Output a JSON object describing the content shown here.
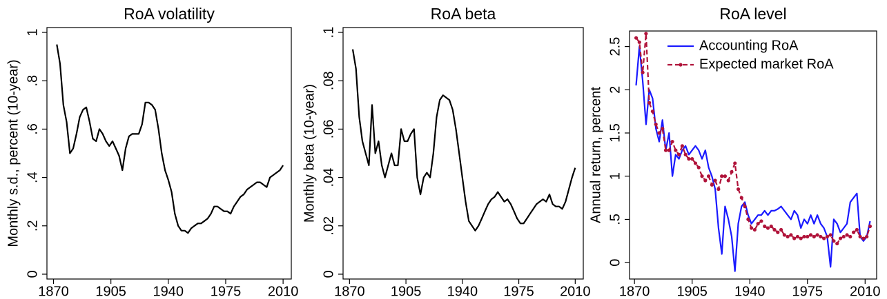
{
  "chart_data": [
    {
      "type": "line",
      "title": "RoA volatility",
      "y_label": "Monthly s.d., percent (10-year)",
      "color": "#000000",
      "x": [
        1872,
        1874,
        1876,
        1878,
        1880,
        1882,
        1884,
        1886,
        1888,
        1890,
        1892,
        1894,
        1896,
        1898,
        1900,
        1902,
        1904,
        1906,
        1908,
        1910,
        1912,
        1914,
        1916,
        1918,
        1920,
        1922,
        1924,
        1926,
        1928,
        1930,
        1932,
        1934,
        1936,
        1938,
        1940,
        1942,
        1944,
        1946,
        1948,
        1950,
        1952,
        1954,
        1956,
        1958,
        1960,
        1962,
        1964,
        1966,
        1968,
        1970,
        1972,
        1974,
        1976,
        1978,
        1980,
        1982,
        1984,
        1986,
        1988,
        1990,
        1992,
        1994,
        1996,
        1998,
        2000,
        2002,
        2004,
        2006,
        2008,
        2010
      ],
      "values": [
        0.95,
        0.87,
        0.7,
        0.63,
        0.5,
        0.52,
        0.58,
        0.65,
        0.68,
        0.69,
        0.63,
        0.56,
        0.55,
        0.6,
        0.58,
        0.55,
        0.53,
        0.55,
        0.52,
        0.49,
        0.43,
        0.52,
        0.57,
        0.58,
        0.58,
        0.58,
        0.62,
        0.71,
        0.71,
        0.7,
        0.68,
        0.6,
        0.5,
        0.43,
        0.39,
        0.34,
        0.25,
        0.2,
        0.18,
        0.18,
        0.17,
        0.19,
        0.2,
        0.21,
        0.21,
        0.22,
        0.23,
        0.25,
        0.28,
        0.28,
        0.27,
        0.26,
        0.26,
        0.25,
        0.28,
        0.3,
        0.32,
        0.33,
        0.35,
        0.36,
        0.37,
        0.38,
        0.38,
        0.37,
        0.36,
        0.4,
        0.41,
        0.42,
        0.43,
        0.45
      ],
      "xlim": [
        1866,
        2015
      ],
      "xticks": [
        1870,
        1905,
        1940,
        1975,
        2010
      ],
      "ylim": [
        -0.02,
        1.02
      ],
      "yticks": [
        0,
        {
          "value": 0.2,
          "label": ".2"
        },
        {
          "value": 0.4,
          "label": ".4"
        },
        {
          "value": 0.6,
          "label": ".6"
        },
        {
          "value": 0.8,
          "label": ".8"
        },
        1
      ]
    },
    {
      "type": "line",
      "title": "RoA beta",
      "y_label": "Monthly beta (10-year)",
      "color": "#000000",
      "x": [
        1872,
        1874,
        1876,
        1878,
        1880,
        1882,
        1884,
        1886,
        1888,
        1890,
        1892,
        1894,
        1896,
        1898,
        1900,
        1902,
        1904,
        1906,
        1908,
        1910,
        1912,
        1914,
        1916,
        1918,
        1920,
        1922,
        1924,
        1926,
        1928,
        1930,
        1932,
        1934,
        1936,
        1938,
        1940,
        1942,
        1944,
        1946,
        1948,
        1950,
        1952,
        1954,
        1956,
        1958,
        1960,
        1962,
        1964,
        1966,
        1968,
        1970,
        1972,
        1974,
        1976,
        1978,
        1980,
        1982,
        1984,
        1986,
        1988,
        1990,
        1992,
        1994,
        1996,
        1998,
        2000,
        2002,
        2004,
        2006,
        2008,
        2010
      ],
      "values": [
        0.093,
        0.085,
        0.065,
        0.055,
        0.05,
        0.045,
        0.07,
        0.05,
        0.055,
        0.045,
        0.04,
        0.045,
        0.05,
        0.045,
        0.045,
        0.06,
        0.055,
        0.055,
        0.058,
        0.06,
        0.04,
        0.033,
        0.04,
        0.042,
        0.04,
        0.05,
        0.065,
        0.072,
        0.074,
        0.073,
        0.072,
        0.068,
        0.06,
        0.05,
        0.04,
        0.03,
        0.022,
        0.02,
        0.018,
        0.02,
        0.023,
        0.026,
        0.029,
        0.031,
        0.032,
        0.034,
        0.032,
        0.03,
        0.031,
        0.029,
        0.026,
        0.023,
        0.021,
        0.021,
        0.023,
        0.025,
        0.027,
        0.029,
        0.03,
        0.031,
        0.03,
        0.033,
        0.029,
        0.028,
        0.028,
        0.027,
        0.03,
        0.035,
        0.04,
        0.044
      ],
      "xlim": [
        1866,
        2015
      ],
      "xticks": [
        1870,
        1905,
        1940,
        1975,
        2010
      ],
      "ylim": [
        -0.002,
        0.102
      ],
      "yticks": [
        0,
        {
          "value": 0.02,
          "label": ".02"
        },
        {
          "value": 0.04,
          "label": ".04"
        },
        {
          "value": 0.06,
          "label": ".06"
        },
        {
          "value": 0.08,
          "label": ".08"
        },
        {
          "value": 0.1,
          "label": ".1"
        }
      ]
    },
    {
      "type": "line",
      "title": "RoA level",
      "y_label": "Annual return, percent",
      "legend": "upper right",
      "x": [
        1871,
        1873,
        1875,
        1877,
        1879,
        1881,
        1883,
        1885,
        1887,
        1889,
        1891,
        1893,
        1895,
        1897,
        1899,
        1901,
        1903,
        1905,
        1907,
        1909,
        1911,
        1913,
        1915,
        1917,
        1919,
        1921,
        1923,
        1925,
        1927,
        1929,
        1931,
        1933,
        1935,
        1937,
        1939,
        1941,
        1943,
        1945,
        1947,
        1949,
        1951,
        1953,
        1955,
        1957,
        1959,
        1961,
        1963,
        1965,
        1967,
        1969,
        1971,
        1973,
        1975,
        1977,
        1979,
        1981,
        1983,
        1985,
        1987,
        1989,
        1991,
        1993,
        1995,
        1997,
        1999,
        2001,
        2003,
        2005,
        2007,
        2009,
        2011,
        2013
      ],
      "series": [
        {
          "name": "Accounting RoA",
          "color": "#1a1aff",
          "dash": false,
          "markers": false,
          "values": [
            2.05,
            2.5,
            2.1,
            1.6,
            2.0,
            1.9,
            1.55,
            1.4,
            1.65,
            1.3,
            1.5,
            1.0,
            1.25,
            1.2,
            1.3,
            1.35,
            1.25,
            1.3,
            1.35,
            1.3,
            1.2,
            1.3,
            1.1,
            1.0,
            0.85,
            0.4,
            0.1,
            0.65,
            0.5,
            0.3,
            -0.1,
            0.45,
            0.65,
            0.7,
            0.55,
            0.45,
            0.5,
            0.55,
            0.55,
            0.6,
            0.55,
            0.6,
            0.6,
            0.62,
            0.65,
            0.6,
            0.55,
            0.5,
            0.6,
            0.55,
            0.4,
            0.5,
            0.45,
            0.55,
            0.45,
            0.55,
            0.45,
            0.4,
            0.3,
            -0.05,
            0.5,
            0.45,
            0.35,
            0.4,
            0.45,
            0.7,
            0.75,
            0.8,
            0.3,
            0.25,
            0.3,
            0.48
          ]
        },
        {
          "name": "Expected market RoA",
          "color": "#b0133a",
          "dash": true,
          "markers": true,
          "values": [
            2.6,
            2.55,
            2.2,
            2.65,
            1.85,
            1.75,
            1.6,
            1.5,
            1.55,
            1.3,
            1.3,
            1.4,
            1.3,
            1.25,
            1.35,
            1.25,
            1.2,
            1.2,
            1.15,
            1.1,
            1.0,
            0.95,
            1.0,
            0.9,
            0.95,
            0.85,
            1.0,
            1.0,
            0.95,
            1.05,
            1.15,
            0.85,
            0.75,
            0.65,
            0.5,
            0.4,
            0.38,
            0.45,
            0.48,
            0.42,
            0.4,
            0.42,
            0.38,
            0.35,
            0.38,
            0.32,
            0.3,
            0.32,
            0.28,
            0.3,
            0.28,
            0.3,
            0.3,
            0.32,
            0.3,
            0.32,
            0.3,
            0.28,
            0.3,
            0.32,
            0.25,
            0.22,
            0.28,
            0.3,
            0.32,
            0.3,
            0.35,
            0.38,
            0.3,
            0.28,
            0.3,
            0.42
          ]
        }
      ],
      "xlim": [
        1867,
        2017
      ],
      "xticks": [
        1870,
        1905,
        1940,
        1975,
        2010
      ],
      "ylim": [
        -0.19,
        2.68
      ],
      "yticks": [
        0,
        {
          "value": 0.5,
          "label": ".5"
        },
        1,
        1.5,
        2,
        2.5
      ]
    }
  ]
}
